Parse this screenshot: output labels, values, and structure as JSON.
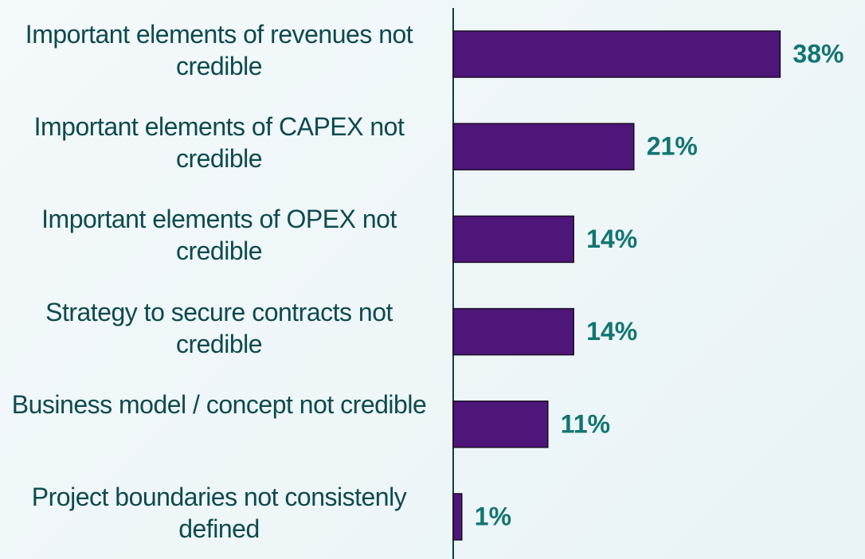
{
  "chart_data": {
    "type": "bar",
    "orientation": "horizontal",
    "categories": [
      "Important elements of revenues not credible",
      "Important elements of CAPEX not credible",
      "Important elements of OPEX not credible",
      "Strategy to secure contracts not credible",
      "Business model / concept not credible",
      "Project boundaries not consistenly defined"
    ],
    "values": [
      38,
      21,
      14,
      14,
      11,
      1
    ],
    "value_labels": [
      "38%",
      "21%",
      "14%",
      "14%",
      "11%",
      "1%"
    ],
    "color": "#4f1679"
  }
}
